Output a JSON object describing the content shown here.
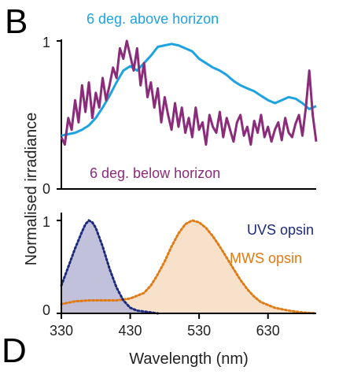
{
  "panels": {
    "top_letter": "B",
    "bottom_letter": "D"
  },
  "colors": {
    "above": "#1ea3e0",
    "below": "#8b2c7a",
    "uvs": "#1c2a7a",
    "uvs_fill": "#b7b6d6",
    "mws": "#e07a14",
    "mws_fill": "#f6dcc2"
  },
  "chart_data": [
    {
      "type": "line",
      "ylabel": "Normalised irradiance",
      "xlim": [
        330,
        700
      ],
      "ylim": [
        0,
        1
      ],
      "yticks": [
        "0",
        "1"
      ],
      "series": [
        {
          "name": "6 deg. above horizon",
          "x": [
            330,
            340,
            350,
            360,
            370,
            380,
            390,
            400,
            410,
            420,
            430,
            440,
            450,
            460,
            470,
            480,
            490,
            500,
            510,
            520,
            530,
            540,
            550,
            560,
            570,
            580,
            590,
            600,
            610,
            620,
            630,
            640,
            650,
            660,
            670,
            680,
            690,
            700
          ],
          "y": [
            0.36,
            0.37,
            0.38,
            0.4,
            0.43,
            0.48,
            0.55,
            0.63,
            0.72,
            0.8,
            0.83,
            0.8,
            0.85,
            0.9,
            0.96,
            0.97,
            0.98,
            0.97,
            0.95,
            0.93,
            0.88,
            0.85,
            0.82,
            0.8,
            0.77,
            0.73,
            0.7,
            0.68,
            0.66,
            0.63,
            0.6,
            0.58,
            0.6,
            0.62,
            0.61,
            0.58,
            0.54,
            0.56
          ]
        },
        {
          "name": "6 deg. below horizon",
          "x": [
            330,
            335,
            340,
            345,
            350,
            355,
            360,
            365,
            370,
            375,
            380,
            385,
            390,
            395,
            400,
            405,
            410,
            415,
            420,
            425,
            430,
            435,
            440,
            445,
            450,
            455,
            460,
            465,
            470,
            475,
            480,
            485,
            490,
            495,
            500,
            505,
            510,
            515,
            520,
            525,
            530,
            535,
            540,
            545,
            550,
            555,
            560,
            565,
            570,
            575,
            580,
            585,
            590,
            595,
            600,
            605,
            610,
            615,
            620,
            625,
            630,
            635,
            640,
            645,
            650,
            655,
            660,
            665,
            670,
            675,
            680,
            685,
            690,
            695,
            700
          ],
          "y": [
            0.35,
            0.3,
            0.48,
            0.4,
            0.6,
            0.45,
            0.7,
            0.52,
            0.72,
            0.48,
            0.65,
            0.55,
            0.75,
            0.6,
            0.7,
            0.82,
            0.75,
            0.95,
            0.88,
            1.0,
            0.9,
            0.8,
            0.95,
            0.7,
            0.85,
            0.62,
            0.72,
            0.55,
            0.68,
            0.45,
            0.62,
            0.5,
            0.4,
            0.58,
            0.42,
            0.55,
            0.38,
            0.48,
            0.35,
            0.55,
            0.4,
            0.45,
            0.3,
            0.5,
            0.42,
            0.38,
            0.52,
            0.35,
            0.48,
            0.4,
            0.32,
            0.45,
            0.5,
            0.36,
            0.42,
            0.3,
            0.46,
            0.38,
            0.5,
            0.35,
            0.42,
            0.32,
            0.4,
            0.45,
            0.33,
            0.48,
            0.38,
            0.35,
            0.44,
            0.5,
            0.36,
            0.55,
            0.8,
            0.5,
            0.32
          ]
        }
      ]
    },
    {
      "type": "area",
      "xlabel": "Wavelength (nm)",
      "xlim": [
        330,
        700
      ],
      "ylim": [
        0,
        1
      ],
      "xticks": [
        330,
        430,
        530,
        630
      ],
      "yticks": [
        "0",
        "1"
      ],
      "series": [
        {
          "name": "UVS opsin",
          "x": [
            330,
            340,
            350,
            360,
            365,
            370,
            375,
            380,
            390,
            400,
            410,
            420,
            430,
            440,
            450,
            460,
            470
          ],
          "y": [
            0.3,
            0.5,
            0.7,
            0.88,
            0.96,
            1.0,
            0.98,
            0.92,
            0.72,
            0.48,
            0.28,
            0.14,
            0.06,
            0.03,
            0.02,
            0.01,
            0.0
          ]
        },
        {
          "name": "MWS opsin",
          "x": [
            330,
            350,
            370,
            390,
            410,
            430,
            450,
            460,
            470,
            480,
            490,
            500,
            510,
            520,
            530,
            540,
            550,
            560,
            570,
            580,
            590,
            600,
            610,
            620,
            640,
            660,
            680,
            700
          ],
          "y": [
            0.1,
            0.13,
            0.14,
            0.14,
            0.14,
            0.16,
            0.22,
            0.3,
            0.42,
            0.56,
            0.72,
            0.86,
            0.96,
            1.0,
            0.98,
            0.92,
            0.83,
            0.72,
            0.6,
            0.48,
            0.36,
            0.26,
            0.18,
            0.12,
            0.06,
            0.03,
            0.01,
            0.0
          ]
        }
      ]
    }
  ]
}
